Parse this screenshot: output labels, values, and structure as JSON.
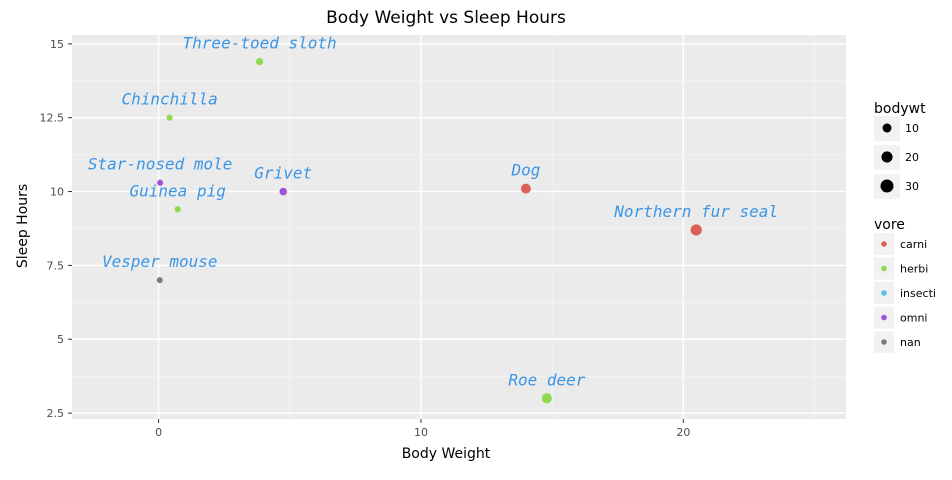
{
  "chart_data": {
    "type": "scatter",
    "title": "Body Weight vs Sleep Hours",
    "xlabel": "Body Weight",
    "ylabel": "Sleep Hours",
    "xlim": [
      -3.3,
      26.2
    ],
    "ylim": [
      2.3,
      15.3
    ],
    "xticks": [
      {
        "value": 0,
        "label": "0"
      },
      {
        "value": 10,
        "label": "10"
      },
      {
        "value": 20,
        "label": "20"
      }
    ],
    "yticks": [
      {
        "value": 2.5,
        "label": "2.5"
      },
      {
        "value": 5,
        "label": "5"
      },
      {
        "value": 7.5,
        "label": "7.5"
      },
      {
        "value": 10,
        "label": "10"
      },
      {
        "value": 12.5,
        "label": "12.5"
      },
      {
        "value": 15,
        "label": "15"
      }
    ],
    "minor_x": [
      -5,
      5,
      15,
      25
    ],
    "grid": true,
    "panel_background": "#ebebeb",
    "label_color": "#3b95e6",
    "points": [
      {
        "name": "Three-toed sloth",
        "x": 3.85,
        "y": 14.4,
        "vore": "herbi"
      },
      {
        "name": "Chinchilla",
        "x": 0.42,
        "y": 12.5,
        "vore": "herbi"
      },
      {
        "name": "Star-nosed mole",
        "x": 0.06,
        "y": 10.3,
        "vore": "omni"
      },
      {
        "name": "Guinea pig",
        "x": 0.728,
        "y": 9.4,
        "vore": "herbi"
      },
      {
        "name": "Grivet",
        "x": 4.75,
        "y": 10.0,
        "vore": "omni"
      },
      {
        "name": "Vesper mouse",
        "x": 0.045,
        "y": 7.0,
        "vore": "nan"
      },
      {
        "name": "Dog",
        "x": 14.0,
        "y": 10.1,
        "vore": "carni"
      },
      {
        "name": "Northern fur seal",
        "x": 20.49,
        "y": 8.7,
        "vore": "carni"
      },
      {
        "name": "Roe deer",
        "x": 14.8,
        "y": 3.0,
        "vore": "herbi"
      }
    ],
    "size_legend": {
      "title": "bodywt",
      "entries": [
        {
          "value": 10,
          "label": "10"
        },
        {
          "value": 20,
          "label": "20"
        },
        {
          "value": 30,
          "label": "30"
        }
      ]
    },
    "color_legend": {
      "title": "vore",
      "entries": [
        {
          "key": "carni",
          "label": "carni",
          "color": "#d95f57"
        },
        {
          "key": "herbi",
          "label": "herbi",
          "color": "#8ed94e"
        },
        {
          "key": "insecti",
          "label": "insecti",
          "color": "#57c4e6"
        },
        {
          "key": "omni",
          "label": "omni",
          "color": "#a152d9"
        },
        {
          "key": "nan",
          "label": "nan",
          "color": "#7a7a7a"
        }
      ]
    }
  }
}
